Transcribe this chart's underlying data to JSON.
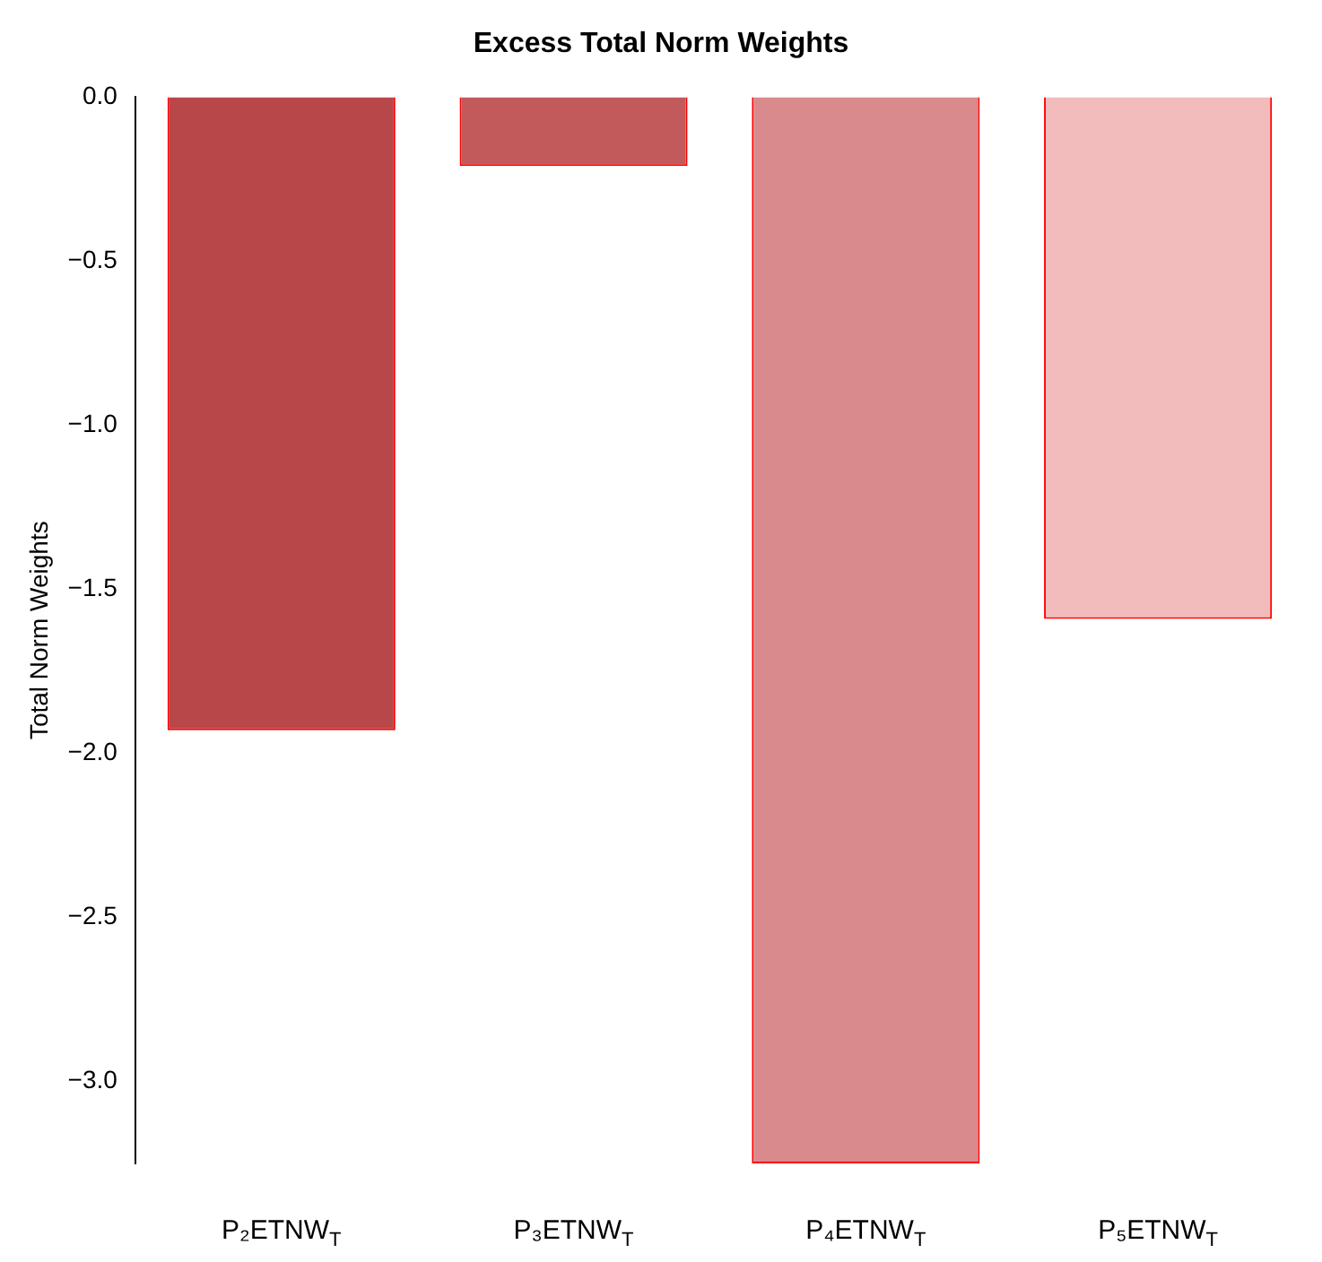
{
  "chart_data": {
    "type": "bar",
    "title": "Excess Total Norm Weights",
    "ylabel": "Total Norm Weights",
    "categories": [
      "P₂ETNW$_{T}$",
      "P₃ETNW$_{T}$",
      "P₄ETNW$_{T}$",
      "P₅ETNW$_{T}$"
    ],
    "values": [
      -1.93,
      -0.21,
      -3.25,
      -1.59
    ],
    "colors": [
      "#b8474a",
      "#c25a5c",
      "#d98a8c",
      "#f3bcbc"
    ],
    "ylim": [
      -3.25,
      0
    ],
    "yticks": [
      {
        "value": 0,
        "label": "0.0"
      },
      {
        "value": -0.5,
        "label": "−0.5"
      },
      {
        "value": -1,
        "label": "−1.0"
      },
      {
        "value": -1.5,
        "label": "−1.5"
      },
      {
        "value": -2,
        "label": "−2.0"
      },
      {
        "value": -2.5,
        "label": "−2.5"
      },
      {
        "value": -3,
        "label": "−3.0"
      }
    ],
    "grid": false,
    "legend": false
  }
}
